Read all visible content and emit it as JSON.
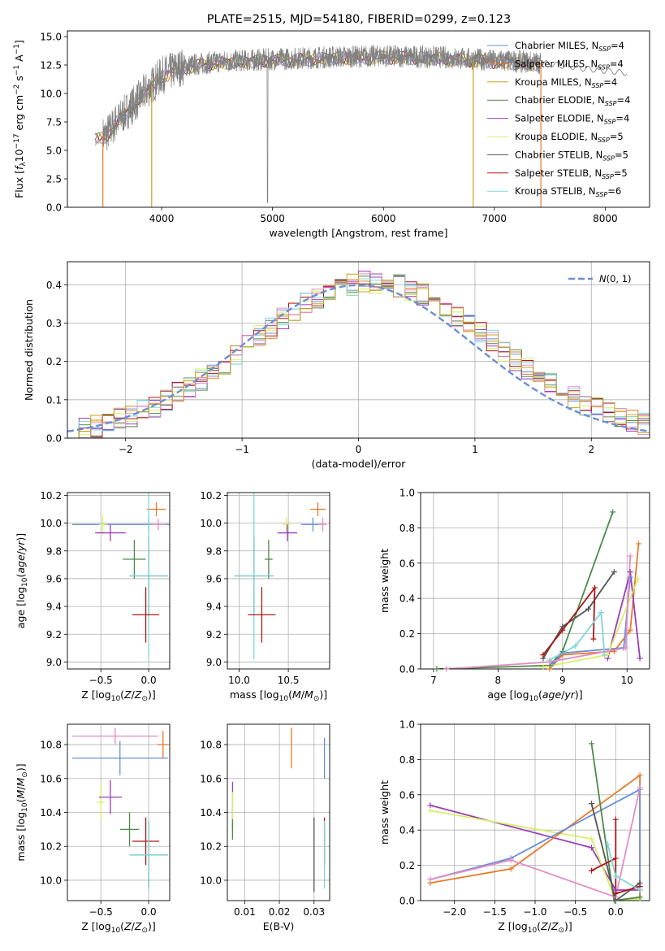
{
  "figure": {
    "title": "PLATE=2515, MJD=54180, FIBERID=0299, z=0.123"
  },
  "colors": {
    "Chabrier MILES": "#6a8fd6",
    "Salpeter MILES": "#e87a2a",
    "Kroupa MILES": "#c9a227",
    "Chabrier ELODIE": "#4c8a4a",
    "Salpeter ELODIE": "#9a3db7",
    "Kroupa ELODIE": "#d7ef66",
    "Chabrier STELIB": "#555555",
    "Salpeter STELIB": "#b01515",
    "Kroupa STELIB": "#7fd6d9",
    "Pink": "#e48dc5",
    "Gray": "#808080",
    "Normal": "#6a8fd6"
  },
  "legend": [
    {
      "name": "Chabrier MILES",
      "nssp": "4"
    },
    {
      "name": "Salpeter MILES",
      "nssp": "4"
    },
    {
      "name": "Kroupa MILES",
      "nssp": "4"
    },
    {
      "name": "Chabrier ELODIE",
      "nssp": "4"
    },
    {
      "name": "Salpeter ELODIE",
      "nssp": "4"
    },
    {
      "name": "Kroupa ELODIE",
      "nssp": "5"
    },
    {
      "name": "Chabrier STELIB",
      "nssp": "5"
    },
    {
      "name": "Salpeter STELIB",
      "nssp": "5"
    },
    {
      "name": "Kroupa STELIB",
      "nssp": "6"
    }
  ],
  "chart_data": [
    {
      "id": "spectrum",
      "type": "line",
      "title": "PLATE=2515, MJD=54180, FIBERID=0299, z=0.123",
      "xlabel": "wavelength [Angstrom, rest frame]",
      "ylabel": "Flux [f_λ10^-17 erg cm^-2 s^-1 A^-1]",
      "xlim": [
        3150,
        8400
      ],
      "ylim": [
        0,
        15.5
      ],
      "xticks": [
        4000,
        5000,
        6000,
        7000,
        8000
      ],
      "yticks": [
        0.0,
        2.5,
        5.0,
        7.5,
        10.0,
        12.5,
        15.0
      ],
      "data_range": [
        3400,
        7420
      ],
      "continuum": [
        [
          3400,
          6.0
        ],
        [
          3500,
          6.4
        ],
        [
          3600,
          7.6
        ],
        [
          3700,
          8.6
        ],
        [
          3800,
          9.6
        ],
        [
          3900,
          10.6
        ],
        [
          4000,
          11.6
        ],
        [
          4200,
          12.4
        ],
        [
          4500,
          12.8
        ],
        [
          5000,
          13.0
        ],
        [
          5500,
          13.2
        ],
        [
          6000,
          13.3
        ],
        [
          6500,
          13.2
        ],
        [
          7000,
          12.9
        ],
        [
          7420,
          12.7
        ]
      ],
      "model_tail": [
        [
          7420,
          12.7
        ],
        [
          7800,
          12.2
        ],
        [
          8200,
          11.8
        ]
      ]
    },
    {
      "id": "residuals",
      "type": "line",
      "xlabel": "(data-model)/error",
      "ylabel": "Normed distribution",
      "xlim": [
        -2.5,
        2.5
      ],
      "ylim": [
        0,
        0.46
      ],
      "xticks": [
        -2,
        -1,
        0,
        1,
        2
      ],
      "yticks": [
        0.0,
        0.1,
        0.2,
        0.3,
        0.4
      ],
      "legend": "N(0,1)",
      "bin_width": 0.1
    },
    {
      "id": "age_vs_Z",
      "type": "scatter",
      "xlabel": "Z [log10(Z/Z⊙)]",
      "ylabel": "age  [log10(age/yr)]",
      "xlim": [
        -0.85,
        0.22
      ],
      "ylim": [
        8.95,
        10.22
      ],
      "xticks": [
        -0.5,
        0.0
      ],
      "yticks": [
        9.0,
        9.2,
        9.4,
        9.6,
        9.8,
        10.0,
        10.2
      ],
      "points": [
        {
          "series": "Salpeter MILES",
          "x": 0.08,
          "y": 10.1,
          "xerr": 0.1,
          "yerr": 0.05
        },
        {
          "series": "Chabrier MILES",
          "x": 0.0,
          "y": 9.99,
          "xerr": 0.8,
          "yerr": 0.05
        },
        {
          "series": "Pink",
          "x": 0.1,
          "y": 9.99,
          "xerr": 0.08,
          "yerr": 0.04
        },
        {
          "series": "Kroupa ELODIE",
          "x": -0.48,
          "y": 9.99,
          "xerr": 0.04,
          "yerr": 0.07
        },
        {
          "series": "Salpeter ELODIE",
          "x": -0.4,
          "y": 9.93,
          "xerr": 0.16,
          "yerr": 0.06
        },
        {
          "series": "Chabrier ELODIE",
          "x": -0.15,
          "y": 9.74,
          "xerr": 0.12,
          "yerr": 0.14
        },
        {
          "series": "Chabrier STELIB",
          "x": 0.0,
          "y": 9.62,
          "xerr": 0.2,
          "yerr": 0.28
        },
        {
          "series": "Kroupa STELIB",
          "x": 0.0,
          "y": 9.62,
          "xerr": 0.2,
          "yerr": 0.6
        },
        {
          "series": "Salpeter STELIB",
          "x": -0.03,
          "y": 9.34,
          "xerr": 0.14,
          "yerr": 0.2
        }
      ]
    },
    {
      "id": "age_vs_mass",
      "type": "scatter",
      "xlabel": "mass [log10(M/M⊙)]",
      "xlim": [
        9.88,
        10.92
      ],
      "ylim": [
        8.95,
        10.22
      ],
      "xticks": [
        10.0,
        10.5
      ],
      "yticks": [
        9.0,
        9.2,
        9.4,
        9.6,
        9.8,
        10.0,
        10.2
      ],
      "points": [
        {
          "series": "Salpeter MILES",
          "x": 10.8,
          "y": 10.1,
          "xerr": 0.08,
          "yerr": 0.05
        },
        {
          "series": "Chabrier MILES",
          "x": 10.75,
          "y": 9.99,
          "xerr": 0.12,
          "yerr": 0.05
        },
        {
          "series": "Pink",
          "x": 10.85,
          "y": 9.99,
          "xerr": 0.04,
          "yerr": 0.05
        },
        {
          "series": "Kroupa ELODIE",
          "x": 10.48,
          "y": 9.99,
          "xerr": 0.04,
          "yerr": 0.05
        },
        {
          "series": "Salpeter ELODIE",
          "x": 10.49,
          "y": 9.93,
          "xerr": 0.1,
          "yerr": 0.06
        },
        {
          "series": "Chabrier ELODIE",
          "x": 10.3,
          "y": 9.74,
          "xerr": 0.04,
          "yerr": 0.14
        },
        {
          "series": "Chabrier STELIB",
          "x": 10.15,
          "y": 9.62,
          "xerr": 0.2,
          "yerr": 0.28
        },
        {
          "series": "Kroupa STELIB",
          "x": 10.15,
          "y": 9.62,
          "xerr": 0.2,
          "yerr": 0.6
        },
        {
          "series": "Salpeter STELIB",
          "x": 10.23,
          "y": 9.34,
          "xerr": 0.14,
          "yerr": 0.2
        }
      ]
    },
    {
      "id": "weight_vs_age",
      "type": "line",
      "xlabel": "age  [log10(age/yr)]",
      "ylabel": "mass weight",
      "xlim": [
        6.8,
        10.35
      ],
      "ylim": [
        0,
        1.0
      ],
      "xticks": [
        7,
        8,
        9,
        10
      ],
      "yticks": [
        0.0,
        0.2,
        0.4,
        0.6,
        0.8,
        1.0
      ],
      "series": [
        {
          "name": "Chabrier ELODIE",
          "points": [
            [
              7.05,
              0.0
            ],
            [
              8.8,
              0.02
            ],
            [
              9.0,
              0.1
            ],
            [
              9.78,
              0.89
            ]
          ]
        },
        {
          "name": "Salpeter MILES",
          "points": [
            [
              8.8,
              0.0
            ],
            [
              9.0,
              0.08
            ],
            [
              9.8,
              0.1
            ],
            [
              10.05,
              0.22
            ],
            [
              10.18,
              0.71
            ]
          ]
        },
        {
          "name": "Chabrier MILES",
          "points": [
            [
              8.85,
              0.03
            ],
            [
              9.0,
              0.09
            ],
            [
              9.95,
              0.12
            ],
            [
              10.05,
              0.52
            ]
          ]
        },
        {
          "name": "Salpeter ELODIE",
          "points": [
            [
              9.7,
              0.06
            ],
            [
              10.05,
              0.55
            ],
            [
              10.2,
              0.06
            ]
          ]
        },
        {
          "name": "Kroupa ELODIE",
          "points": [
            [
              8.7,
              0.01
            ],
            [
              9.7,
              0.08
            ],
            [
              10.17,
              0.51
            ]
          ]
        },
        {
          "name": "Chabrier STELIB",
          "points": [
            [
              8.7,
              0.06
            ],
            [
              9.0,
              0.24
            ],
            [
              9.4,
              0.34
            ],
            [
              9.8,
              0.55
            ]
          ]
        },
        {
          "name": "Salpeter STELIB",
          "points": [
            [
              8.7,
              0.08
            ],
            [
              9.0,
              0.22
            ],
            [
              9.5,
              0.46
            ],
            [
              9.48,
              0.17
            ]
          ]
        },
        {
          "name": "Kroupa STELIB",
          "points": [
            [
              8.8,
              0.05
            ],
            [
              9.2,
              0.13
            ],
            [
              9.6,
              0.32
            ],
            [
              9.65,
              0.08
            ]
          ]
        },
        {
          "name": "Pink",
          "points": [
            [
              7.2,
              0.0
            ],
            [
              8.8,
              0.04
            ],
            [
              9.98,
              0.12
            ],
            [
              10.05,
              0.64
            ]
          ]
        }
      ]
    },
    {
      "id": "mass_vs_Z",
      "type": "scatter",
      "xlabel": "Z [log10(Z/Z⊙)]",
      "ylabel": "mass [log10(M/M⊙)]",
      "xlim": [
        -0.85,
        0.22
      ],
      "ylim": [
        9.88,
        10.92
      ],
      "xticks": [
        -0.5,
        0.0
      ],
      "yticks": [
        10.0,
        10.2,
        10.4,
        10.6,
        10.8
      ],
      "points": [
        {
          "series": "Pink",
          "x": -0.35,
          "y": 10.85,
          "xerr": 0.45,
          "yerr": 0.05
        },
        {
          "series": "Salpeter MILES",
          "x": 0.15,
          "y": 10.8,
          "xerr": 0.06,
          "yerr": 0.08
        },
        {
          "series": "Chabrier MILES",
          "x": -0.3,
          "y": 10.72,
          "xerr": 0.5,
          "yerr": 0.1
        },
        {
          "series": "Kroupa ELODIE",
          "x": -0.5,
          "y": 10.46,
          "xerr": 0.04,
          "yerr": 0.1
        },
        {
          "series": "Salpeter ELODIE",
          "x": -0.4,
          "y": 10.49,
          "xerr": 0.12,
          "yerr": 0.1
        },
        {
          "series": "Chabrier ELODIE",
          "x": -0.2,
          "y": 10.3,
          "xerr": 0.1,
          "yerr": 0.1
        },
        {
          "series": "Salpeter STELIB",
          "x": -0.03,
          "y": 10.23,
          "xerr": 0.14,
          "yerr": 0.14
        },
        {
          "series": "Chabrier STELIB",
          "x": 0.0,
          "y": 10.15,
          "xerr": 0.2,
          "yerr": 0.2
        },
        {
          "series": "Kroupa STELIB",
          "x": 0.0,
          "y": 10.15,
          "xerr": 0.2,
          "yerr": 0.2
        }
      ]
    },
    {
      "id": "mass_vs_ebv",
      "type": "scatter",
      "xlabel": "E(B-V)",
      "xlim": [
        0.005,
        0.0345
      ],
      "ylim": [
        9.88,
        10.92
      ],
      "xticks": [
        0.01,
        0.02,
        0.03
      ],
      "yticks": [
        10.0,
        10.2,
        10.4,
        10.6,
        10.8
      ],
      "points": [
        {
          "series": "Salpeter MILES",
          "x": 0.0235,
          "y": 10.78,
          "yerr": 0.12
        },
        {
          "series": "Chabrier MILES",
          "x": 0.033,
          "y": 10.72,
          "yerr": 0.12
        },
        {
          "series": "Salpeter ELODIE",
          "x": 0.0065,
          "y": 10.44,
          "yerr": 0.14
        },
        {
          "series": "Kroupa ELODIE",
          "x": 0.0065,
          "y": 10.38,
          "yerr": 0.14
        },
        {
          "series": "Chabrier ELODIE",
          "x": 0.0065,
          "y": 10.3,
          "yerr": 0.06
        },
        {
          "series": "Salpeter STELIB",
          "x": 0.033,
          "y": 10.23,
          "yerr": 0.14
        },
        {
          "series": "Chabrier STELIB",
          "x": 0.03,
          "y": 10.15,
          "yerr": 0.22
        },
        {
          "series": "Kroupa STELIB",
          "x": 0.033,
          "y": 10.15,
          "yerr": 0.2
        }
      ]
    },
    {
      "id": "weight_vs_Z",
      "type": "line",
      "xlabel": "Z [log10(Z/Z⊙)]",
      "ylabel": "mass weight",
      "xlim": [
        -2.42,
        0.42
      ],
      "ylim": [
        0,
        1.0
      ],
      "xticks": [
        -2.0,
        -1.5,
        -1.0,
        -0.5,
        0.0
      ],
      "yticks": [
        0.0,
        0.2,
        0.4,
        0.6,
        0.8,
        1.0
      ],
      "series": [
        {
          "name": "Salpeter ELODIE",
          "points": [
            [
              -2.3,
              0.54
            ],
            [
              -0.3,
              0.3
            ],
            [
              0.0,
              0.06
            ],
            [
              0.3,
              0.06
            ]
          ]
        },
        {
          "name": "Kroupa ELODIE",
          "points": [
            [
              -2.3,
              0.51
            ],
            [
              -0.3,
              0.35
            ],
            [
              0.0,
              0.0
            ],
            [
              0.3,
              0.01
            ]
          ]
        },
        {
          "name": "Salpeter MILES",
          "points": [
            [
              -2.3,
              0.1
            ],
            [
              -1.3,
              0.18
            ],
            [
              0.3,
              0.71
            ],
            [
              0.3,
              0.02
            ]
          ]
        },
        {
          "name": "Chabrier MILES",
          "points": [
            [
              -2.3,
              0.12
            ],
            [
              -1.3,
              0.24
            ],
            [
              0.3,
              0.63
            ],
            [
              0.3,
              0.08
            ]
          ]
        },
        {
          "name": "Pink",
          "points": [
            [
              -2.3,
              0.12
            ],
            [
              -1.3,
              0.23
            ],
            [
              0.0,
              0.02
            ],
            [
              0.3,
              0.64
            ]
          ]
        },
        {
          "name": "Chabrier ELODIE",
          "points": [
            [
              -0.3,
              0.89
            ],
            [
              -0.02,
              0.0
            ],
            [
              0.3,
              0.02
            ]
          ]
        },
        {
          "name": "Chabrier STELIB",
          "points": [
            [
              -0.3,
              0.55
            ],
            [
              0.0,
              0.0
            ],
            [
              0.3,
              0.1
            ]
          ]
        },
        {
          "name": "Salpeter STELIB",
          "points": [
            [
              -0.3,
              0.17
            ],
            [
              0.0,
              0.24
            ],
            [
              0.0,
              0.46
            ],
            [
              0.0,
              0.04
            ],
            [
              0.3,
              0.08
            ]
          ]
        },
        {
          "name": "Kroupa STELIB",
          "points": [
            [
              -0.1,
              0.32
            ],
            [
              0.0,
              0.14
            ],
            [
              0.3,
              0.06
            ]
          ]
        }
      ]
    }
  ]
}
